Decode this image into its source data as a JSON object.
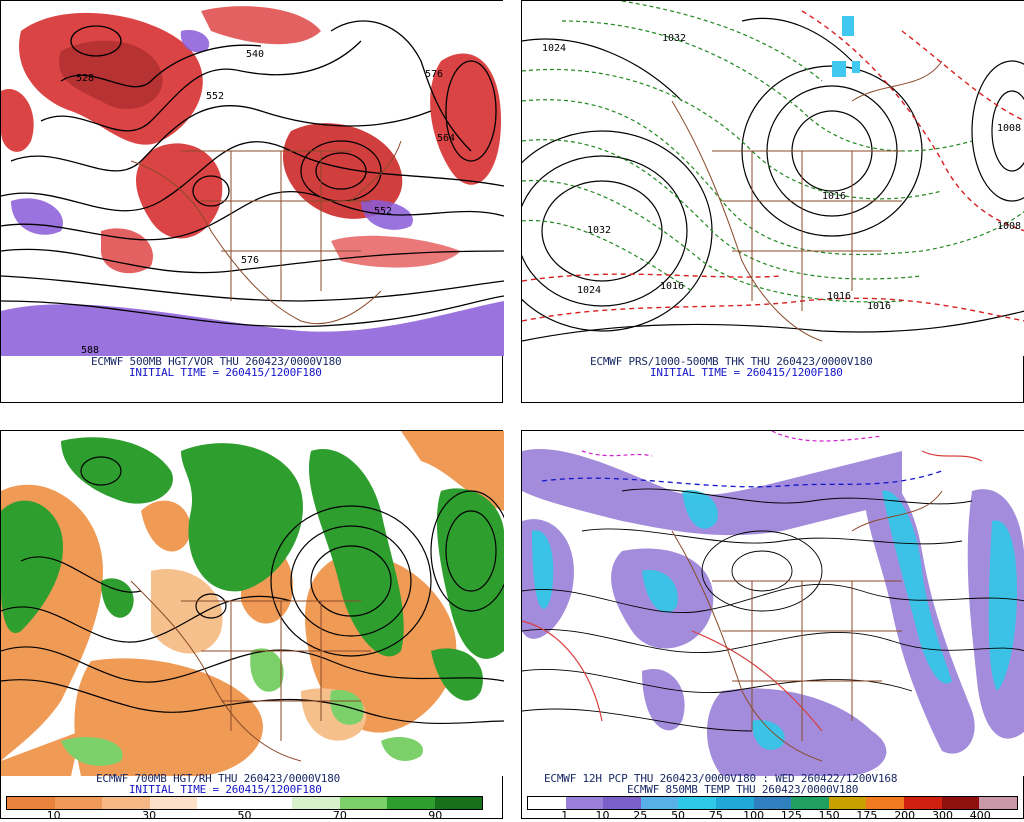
{
  "panels": {
    "p1": {
      "caption": "ECMWF 500MB HGT/VOR THU 260423/0000V180",
      "initial": "INITIAL TIME = 260415/1200F180",
      "contour_labels": [
        "528",
        "552",
        "576",
        "540",
        "564",
        "576",
        "588",
        "552"
      ]
    },
    "p2": {
      "caption": "ECMWF PRS/1000-500MB THK THU 260423/0000V180",
      "initial": "INITIAL TIME = 260415/1200F180",
      "contour_labels": [
        "1024",
        "1032",
        "1032",
        "1024",
        "1016",
        "1008",
        "1016",
        "1016",
        "1008",
        "1016"
      ]
    },
    "p3": {
      "caption": "ECMWF 700MB HGT/RH THU 260423/0000V180",
      "initial": "INITIAL TIME = 260415/1200F180",
      "colorbar": {
        "ticks": [
          "10",
          "30",
          "50",
          "70",
          "90"
        ],
        "colors": [
          "#e8823c",
          "#f09a5a",
          "#f6b884",
          "#fce0c8",
          "#ffffff",
          "#ffffff",
          "#d8f0cc",
          "#7bd06a",
          "#2e9e2e",
          "#17701a"
        ]
      }
    },
    "p4": {
      "caption": "ECMWF 12H PCP THU 260423/0000V180 : WED 260422/1200V168",
      "caption2": "ECMWF 850MB TEMP THU 260423/0000V180",
      "colorbar": {
        "ticks": [
          "1",
          "10",
          "25",
          "50",
          "75",
          "100",
          "125",
          "150",
          "175",
          "200",
          "300",
          "400"
        ],
        "colors": [
          "#ffffff",
          "#9a80d8",
          "#7a60c8",
          "#58b0e8",
          "#30c8e8",
          "#20a8d8",
          "#3080c0",
          "#20a060",
          "#c8a000",
          "#f07a20",
          "#d02010",
          "#901010",
          "#c898a8"
        ]
      }
    }
  }
}
